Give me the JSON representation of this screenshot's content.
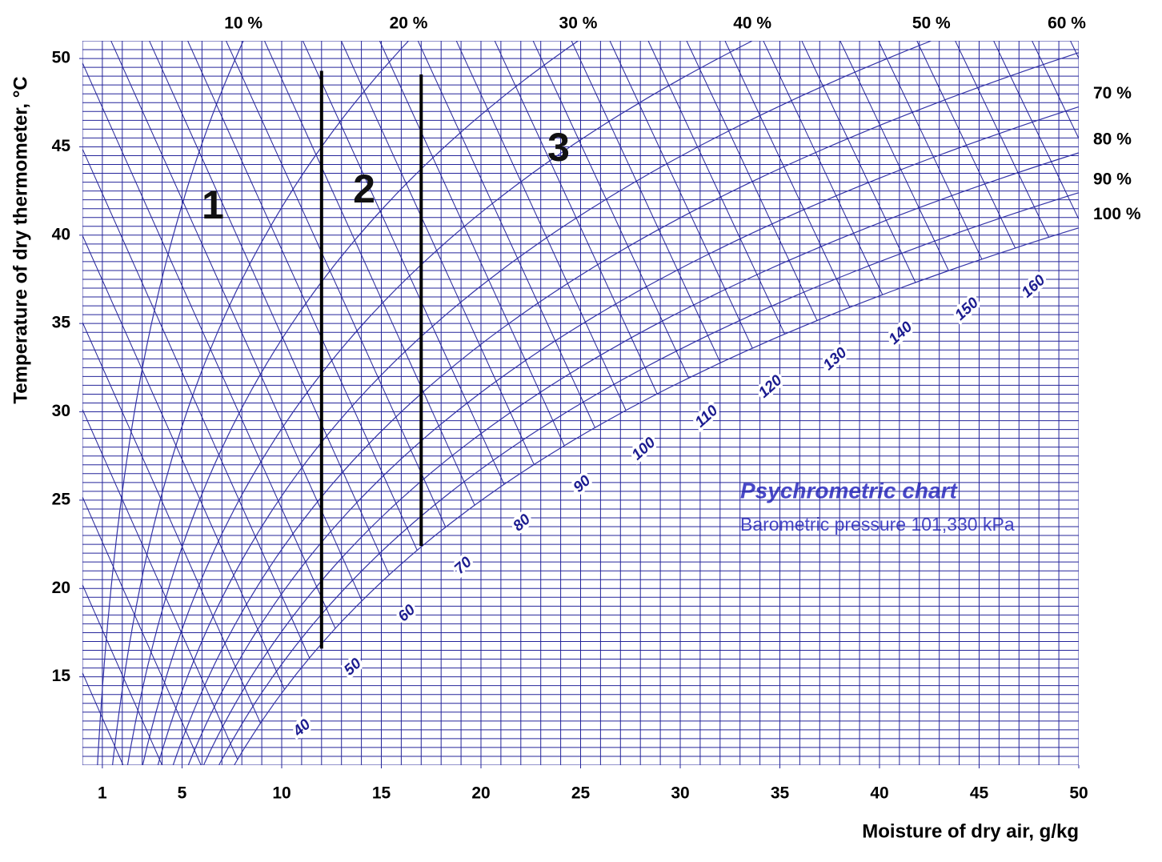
{
  "chart_data": {
    "type": "psychrometric",
    "title": "Psychrometric chart",
    "pressure": {
      "value": 101.33,
      "label": "Barometric pressure 101,330 kPa"
    },
    "x_label": "Moisture of dry air, g/kg",
    "y_label": "Temperature of dry thermometer, °C",
    "xlim": [
      0,
      50
    ],
    "ylim": [
      10,
      51
    ],
    "xticks": [
      1,
      5,
      10,
      15,
      20,
      25,
      30,
      35,
      40,
      45,
      50
    ],
    "yticks": [
      15,
      20,
      25,
      30,
      35,
      40,
      45,
      50
    ],
    "grid": true,
    "minor_grid": {
      "x": 1,
      "y": 0.5
    },
    "rh_curves": [
      {
        "value": 10,
        "label": "10 %",
        "label_side": "top"
      },
      {
        "value": 20,
        "label": "20 %",
        "label_side": "top"
      },
      {
        "value": 30,
        "label": "30 %",
        "label_side": "top"
      },
      {
        "value": 40,
        "label": "40 %",
        "label_side": "top"
      },
      {
        "value": 50,
        "label": "50 %",
        "label_side": "top"
      },
      {
        "value": 60,
        "label": "60 %",
        "label_side": "top"
      },
      {
        "value": 70,
        "label": "70 %",
        "label_side": "right"
      },
      {
        "value": 80,
        "label": "80 %",
        "label_side": "right"
      },
      {
        "value": 90,
        "label": "90 %",
        "label_side": "right"
      },
      {
        "value": 100,
        "label": "100 %",
        "label_side": "right"
      }
    ],
    "enthalpy_lines": [
      15,
      20,
      25,
      30,
      35,
      40,
      45,
      50,
      55,
      60,
      65,
      70,
      75,
      80,
      85,
      90,
      95,
      100,
      105,
      110,
      115,
      120,
      125,
      130,
      135,
      140,
      145,
      150,
      155,
      160,
      165,
      170,
      175,
      180
    ],
    "enthalpy_labels": [
      40,
      50,
      60,
      70,
      80,
      90,
      100,
      110,
      120,
      130,
      140,
      150,
      160
    ],
    "boundaries": [
      {
        "x": 12,
        "t": [
          16.6,
          49.3
        ]
      },
      {
        "x": 17,
        "t": [
          22.4,
          49.1
        ]
      }
    ],
    "zones": [
      "1",
      "2",
      "3"
    ],
    "grid_color": "#24249a",
    "curve_color": "#3434a8",
    "boundary_color": "#000000"
  }
}
